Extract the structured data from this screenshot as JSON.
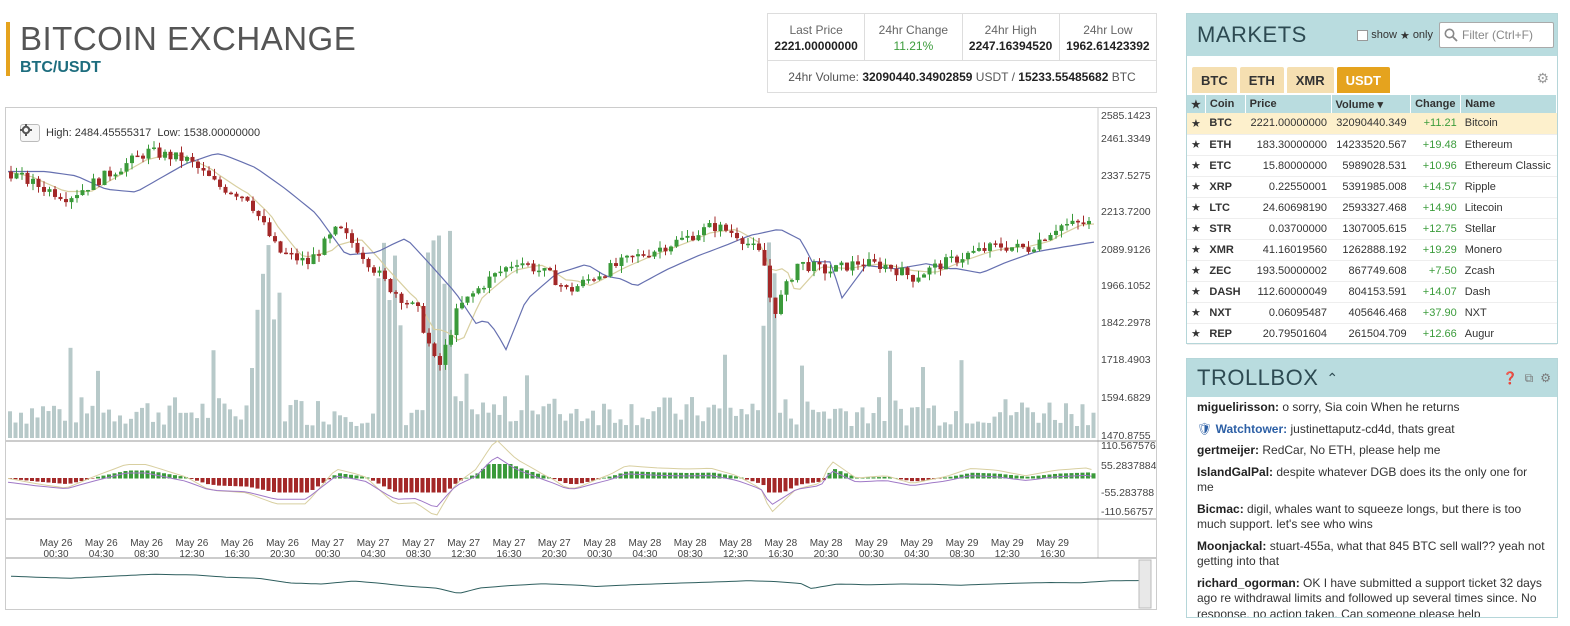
{
  "header": {
    "title": "BITCOIN EXCHANGE",
    "pair": "BTC/USDT"
  },
  "stats": {
    "last_price_label": "Last Price",
    "last_price": "2221.00000000",
    "change_label": "24hr Change",
    "change": "11.21%",
    "high_label": "24hr High",
    "high": "2247.16394520",
    "low_label": "24hr Low",
    "low": "1962.61423392",
    "volume_label": "24hr Volume:",
    "volume_usdt": "32090440.34902859",
    "usdt": "USDT",
    "sep": "/",
    "volume_btc": "15233.55485682",
    "btc": "BTC"
  },
  "chart": {
    "high_label": "High: 2484.45555317",
    "low_label": "Low: 1538.00000000",
    "price_ticks": [
      "2585.1423",
      "2461.3349",
      "2337.5275",
      "2213.7200",
      "2089.9126",
      "1966.1052",
      "1842.2978",
      "1718.4903",
      "1594.6829",
      "1470.8755"
    ],
    "macd_ticks": [
      "110.567576",
      "55.2837884",
      "-55.283788",
      "-110.56757"
    ],
    "x_labels": [
      [
        "May 26",
        "00:30"
      ],
      [
        "May 26",
        "04:30"
      ],
      [
        "May 26",
        "08:30"
      ],
      [
        "May 26",
        "12:30"
      ],
      [
        "May 26",
        "16:30"
      ],
      [
        "May 26",
        "20:30"
      ],
      [
        "May 27",
        "00:30"
      ],
      [
        "May 27",
        "04:30"
      ],
      [
        "May 27",
        "08:30"
      ],
      [
        "May 27",
        "12:30"
      ],
      [
        "May 27",
        "16:30"
      ],
      [
        "May 27",
        "20:30"
      ],
      [
        "May 28",
        "00:30"
      ],
      [
        "May 28",
        "04:30"
      ],
      [
        "May 28",
        "08:30"
      ],
      [
        "May 28",
        "12:30"
      ],
      [
        "May 28",
        "16:30"
      ],
      [
        "May 28",
        "20:30"
      ],
      [
        "May 29",
        "00:30"
      ],
      [
        "May 29",
        "04:30"
      ],
      [
        "May 29",
        "08:30"
      ],
      [
        "May 29",
        "12:30"
      ],
      [
        "May 29",
        "16:30"
      ]
    ],
    "colors": {
      "up": "#3a9a3a",
      "down": "#a32828",
      "volume": "#b7c9c9",
      "ema_fast": "#d8cfa0",
      "ema_slow": "#6670b0"
    }
  },
  "markets": {
    "title": "MARKETS",
    "show_label": "show",
    "only_label": "only",
    "filter_placeholder": "Filter (Ctrl+F)",
    "tabs": [
      "BTC",
      "ETH",
      "XMR",
      "USDT"
    ],
    "columns": [
      "Coin",
      "Price",
      "Volume",
      "Change",
      "Name"
    ],
    "rows": [
      {
        "coin": "BTC",
        "price": "2221.00000000",
        "volume": "32090440.349",
        "change": "+11.21",
        "name": "Bitcoin"
      },
      {
        "coin": "ETH",
        "price": "183.30000000",
        "volume": "14233520.567",
        "change": "+19.48",
        "name": "Ethereum"
      },
      {
        "coin": "ETC",
        "price": "15.80000000",
        "volume": "5989028.531",
        "change": "+10.96",
        "name": "Ethereum Classic"
      },
      {
        "coin": "XRP",
        "price": "0.22550001",
        "volume": "5391985.008",
        "change": "+14.57",
        "name": "Ripple"
      },
      {
        "coin": "LTC",
        "price": "24.60698190",
        "volume": "2593327.468",
        "change": "+14.90",
        "name": "Litecoin"
      },
      {
        "coin": "STR",
        "price": "0.03700000",
        "volume": "1307005.615",
        "change": "+12.75",
        "name": "Stellar"
      },
      {
        "coin": "XMR",
        "price": "41.16019560",
        "volume": "1262888.192",
        "change": "+19.29",
        "name": "Monero"
      },
      {
        "coin": "ZEC",
        "price": "193.50000002",
        "volume": "867749.608",
        "change": "+7.50",
        "name": "Zcash"
      },
      {
        "coin": "DASH",
        "price": "112.60000049",
        "volume": "804153.591",
        "change": "+14.07",
        "name": "Dash"
      },
      {
        "coin": "NXT",
        "price": "0.06095487",
        "volume": "405646.468",
        "change": "+37.90",
        "name": "NXT"
      },
      {
        "coin": "REP",
        "price": "20.79501604",
        "volume": "261504.709",
        "change": "+12.66",
        "name": "Augur"
      }
    ]
  },
  "trollbox": {
    "title": "TROLLBOX",
    "messages": [
      {
        "user": "miguelirisson:",
        "text": "o sorry, Sia coin When he returns"
      },
      {
        "user": "Watchtower:",
        "text": "justinettaputz-cd4d, thats great"
      },
      {
        "user": "gertmeijer:",
        "text": "RedCar, No ETH, please help me"
      },
      {
        "user": "IslandGalPal:",
        "text": "despite whatever DGB does its the only one for me"
      },
      {
        "user": "Bicmac:",
        "text": "digil, whales want to squeeze longs, but there is too much support. let's see who wins"
      },
      {
        "user": "Moonjackal:",
        "text": "stuart-455a, what that 845 BTC sell wall?? yeah not getting into that"
      },
      {
        "user": "richard_ogorman:",
        "text": "OK I have submitted a support ticket 32 days ago re withdrawal limits and followed up several times since. No response, no action taken. Can someone please help"
      }
    ]
  }
}
